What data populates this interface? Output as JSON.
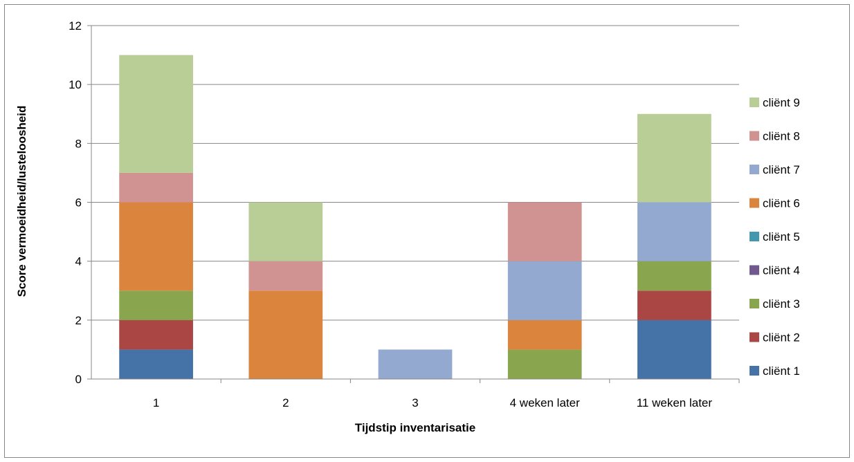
{
  "chart_data": {
    "type": "bar",
    "stacked": true,
    "title": "",
    "xlabel": "Tijdstip inventarisatie",
    "ylabel": "Score vermoeidheid/lusteloosheid",
    "ylim": [
      0,
      12
    ],
    "yticks": [
      "0",
      "2",
      "4",
      "6",
      "8",
      "10",
      "12"
    ],
    "grid": true,
    "legend_position": "right",
    "categories": [
      "1",
      "2",
      "3",
      "4 weken later",
      "11 weken later"
    ],
    "series": [
      {
        "name": "cliënt 1",
        "color": "#4572A7",
        "values": [
          1,
          0,
          0,
          0,
          2
        ]
      },
      {
        "name": "cliënt 2",
        "color": "#AA4643",
        "values": [
          1,
          0,
          0,
          0,
          1
        ]
      },
      {
        "name": "cliënt 3",
        "color": "#89A54E",
        "values": [
          1,
          0,
          0,
          1,
          1
        ]
      },
      {
        "name": "cliënt 4",
        "color": "#71588F",
        "values": [
          0,
          0,
          0,
          0,
          0
        ]
      },
      {
        "name": "cliënt 5",
        "color": "#4198AF",
        "values": [
          0,
          0,
          0,
          0,
          0
        ]
      },
      {
        "name": "cliënt 6",
        "color": "#DB843D",
        "values": [
          3,
          3,
          0,
          1,
          0
        ]
      },
      {
        "name": "cliënt 7",
        "color": "#93A9CF",
        "values": [
          0,
          0,
          1,
          2,
          2
        ]
      },
      {
        "name": "cliënt 8",
        "color": "#D19392",
        "values": [
          1,
          1,
          0,
          2,
          0
        ]
      },
      {
        "name": "cliënt 9",
        "color": "#B9CD96",
        "values": [
          4,
          2,
          0,
          0,
          3
        ]
      }
    ]
  }
}
